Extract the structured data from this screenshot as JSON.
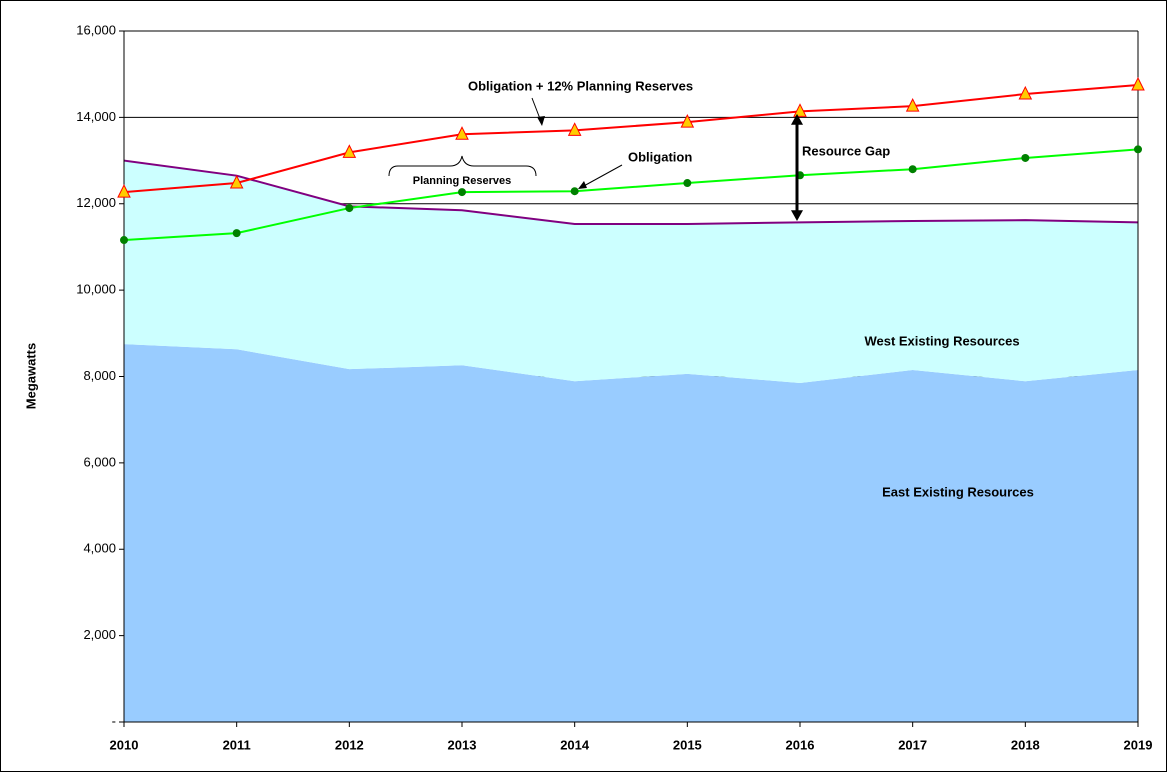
{
  "chart_data": {
    "type": "stacked-area-line",
    "y_label": "Megawatts",
    "categories": [
      "2010",
      "2011",
      "2012",
      "2013",
      "2014",
      "2015",
      "2016",
      "2017",
      "2018",
      "2019"
    ],
    "ylim": [
      0,
      16000
    ],
    "yticks": [
      {
        "value": 0,
        "label": "-"
      },
      {
        "value": 2000,
        "label": "2,000"
      },
      {
        "value": 4000,
        "label": "4,000"
      },
      {
        "value": 6000,
        "label": "6,000"
      },
      {
        "value": 8000,
        "label": "8,000"
      },
      {
        "value": 10000,
        "label": "10,000"
      },
      {
        "value": 12000,
        "label": "12,000"
      },
      {
        "value": 14000,
        "label": "14,000"
      },
      {
        "value": 16000,
        "label": "16,000"
      }
    ],
    "grid": true,
    "areas": [
      {
        "name": "East Existing Resources",
        "color": "#99ccff",
        "values": [
          8750,
          8630,
          8170,
          8260,
          7890,
          8060,
          7850,
          8150,
          7890,
          8150
        ]
      },
      {
        "name": "West Existing Resources",
        "color": "#ccffff",
        "line_color": "#800080",
        "values": [
          4250,
          4020,
          3770,
          3590,
          3640,
          3470,
          3720,
          3450,
          3730,
          3420
        ]
      }
    ],
    "lines": [
      {
        "name": "Obligation",
        "color": "#00ff00",
        "marker": "circle",
        "marker_color": "#008000",
        "values": [
          11160,
          11320,
          11900,
          12270,
          12290,
          12480,
          12660,
          12800,
          13060,
          13260
        ]
      },
      {
        "name": "Obligation + 12% Planning Reserves",
        "color": "#ff0000",
        "marker": "triangle",
        "marker_color": "#ffcc00",
        "values": [
          12270,
          12480,
          13190,
          13610,
          13700,
          13890,
          14140,
          14260,
          14540,
          14750
        ]
      }
    ],
    "annotations": [
      "Planning Reserves",
      "Resource Gap"
    ]
  }
}
